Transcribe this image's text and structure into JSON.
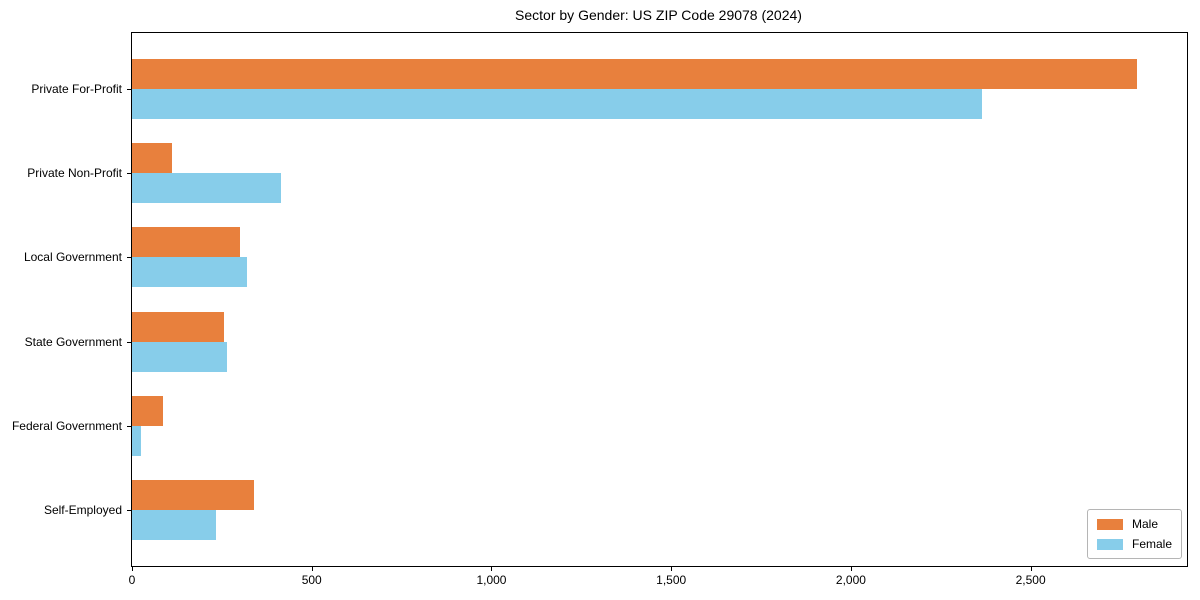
{
  "chart_data": {
    "type": "bar",
    "orientation": "horizontal",
    "title": "Sector by Gender: US ZIP Code 29078 (2024)",
    "categories": [
      "Private For-Profit",
      "Private Non-Profit",
      "Local Government",
      "State Government",
      "Federal Government",
      "Self-Employed"
    ],
    "series": [
      {
        "name": "Male",
        "color": "#e8803d",
        "values": [
          2795,
          110,
          300,
          255,
          85,
          340
        ]
      },
      {
        "name": "Female",
        "color": "#87cdea",
        "values": [
          2365,
          415,
          320,
          265,
          25,
          235
        ]
      }
    ],
    "xlabel": "",
    "ylabel": "",
    "xlim": [
      0,
      2935
    ],
    "xticks": {
      "values": [
        0,
        500,
        1000,
        1500,
        2000,
        2500
      ],
      "labels": [
        "0",
        "500",
        "1,000",
        "1,500",
        "2,000",
        "2,500"
      ]
    },
    "grid": false,
    "legend": {
      "position": "lower right"
    },
    "colors": {
      "male": "#e8803d",
      "female": "#87cdea",
      "axis": "#000000",
      "legend_border": "#b5b5b5"
    }
  }
}
